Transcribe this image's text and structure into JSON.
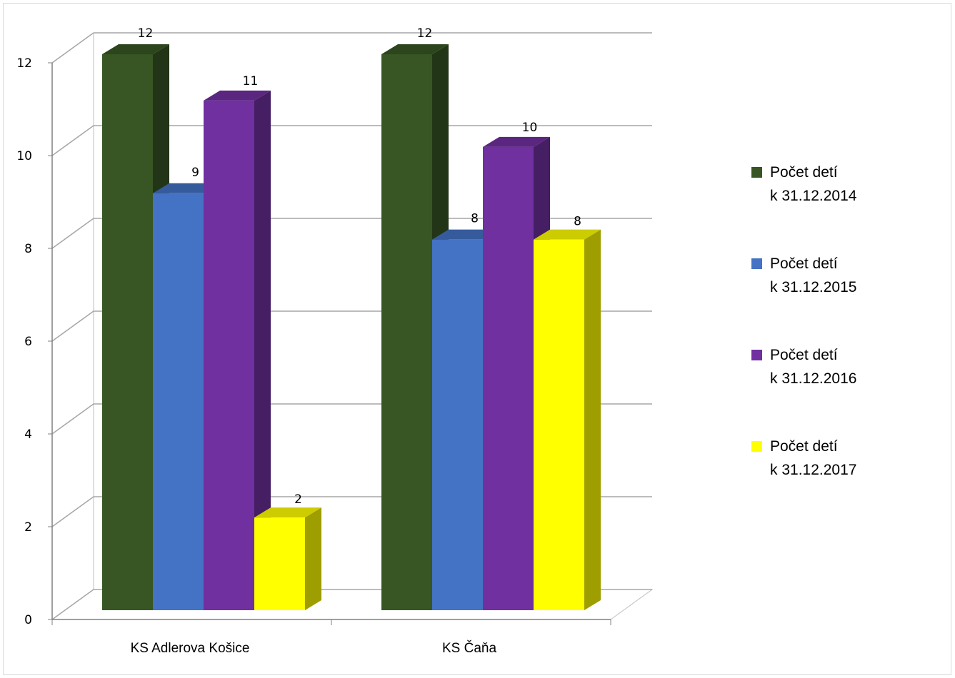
{
  "chart_data": {
    "type": "bar",
    "title": "",
    "xlabel": "",
    "ylabel": "",
    "categories": [
      "KS Adlerova Košice",
      "KS Čaňa"
    ],
    "ylim": [
      0,
      12
    ],
    "yticks": [
      "0",
      "2",
      "4",
      "6",
      "8",
      "10",
      "12"
    ],
    "series": [
      {
        "name": "Počet detí k 31.12.2014",
        "values": [
          12,
          12
        ],
        "color": "#375623"
      },
      {
        "name": "Počet detí k 31.12.2015",
        "values": [
          9,
          8
        ],
        "color": "#4472c4"
      },
      {
        "name": "Počet detí k 31.12.2016",
        "values": [
          11,
          10
        ],
        "color": "#7030a0"
      },
      {
        "name": "Počet detí k 31.12.2017",
        "values": [
          2,
          8
        ],
        "color": "#ffff00"
      }
    ],
    "data_labels": true,
    "grid": true,
    "legend_position": "right",
    "style": "3d-clustered-column"
  },
  "legend": {
    "items": [
      {
        "label": "Počet detí\nk 31.12.2014",
        "color": "#375623"
      },
      {
        "label": "Počet detí\nk 31.12.2015",
        "color": "#4472c4"
      },
      {
        "label": "Počet detí\nk 31.12.2016",
        "color": "#7030a0"
      },
      {
        "label": "Počet detí\nk 31.12.2017",
        "color": "#ffff00"
      }
    ]
  }
}
